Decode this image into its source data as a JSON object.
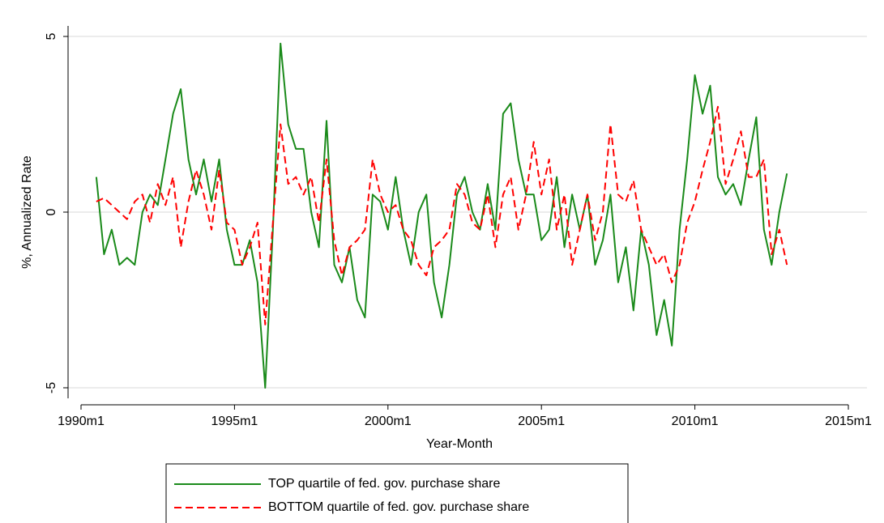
{
  "chart_data": {
    "type": "line",
    "x_label": "Year-Month",
    "y_label": "%, Annualized Rate",
    "x": [
      366,
      369,
      372,
      375,
      378,
      381,
      384,
      387,
      390,
      393,
      396,
      399,
      402,
      405,
      408,
      411,
      414,
      417,
      420,
      423,
      426,
      429,
      432,
      435,
      438,
      441,
      444,
      447,
      450,
      453,
      456,
      459,
      462,
      465,
      468,
      471,
      474,
      477,
      480,
      483,
      486,
      489,
      492,
      495,
      498,
      501,
      504,
      507,
      510,
      513,
      516,
      519,
      522,
      525,
      528,
      531,
      534,
      537,
      540,
      543,
      546,
      549,
      552,
      555,
      558,
      561,
      564,
      567,
      570,
      573,
      576,
      579,
      582,
      585,
      588,
      591,
      594,
      597,
      600,
      603,
      606,
      609,
      612,
      615,
      618,
      621,
      624,
      627,
      630,
      633,
      636
    ],
    "series": [
      {
        "name": "TOP quartile of fed. gov. purchase share",
        "color": "#1a8a1a",
        "dash": "solid",
        "values": [
          1.0,
          -1.2,
          -0.5,
          -1.5,
          -1.3,
          -1.5,
          0,
          0.5,
          0.2,
          1.5,
          2.8,
          3.5,
          1.5,
          0.5,
          1.5,
          0.3,
          1.5,
          -0.5,
          -1.5,
          -1.5,
          -0.8,
          -2,
          -5.0,
          -0.5,
          4.8,
          2.5,
          1.8,
          1.8,
          0,
          -1,
          2.6,
          -1.5,
          -2.0,
          -1.0,
          -2.5,
          -3.0,
          0.5,
          0.3,
          -0.5,
          1.0,
          -0.5,
          -1.5,
          0,
          0.5,
          -2.0,
          -3.0,
          -1.5,
          0.5,
          1.0,
          0,
          -0.5,
          0.8,
          -0.5,
          2.8,
          3.1,
          1.5,
          0.5,
          0.5,
          -0.8,
          -0.5,
          1.0,
          -1.0,
          0.5,
          -0.5,
          0.5,
          -1.5,
          -0.8,
          0.5,
          -2.0,
          -1.0,
          -2.8,
          -0.5,
          -1.5,
          -3.5,
          -2.5,
          -3.8,
          -0.5,
          1.5,
          3.9,
          2.8,
          3.6,
          1.0,
          0.5,
          0.8,
          0.2,
          1.5,
          2.7,
          -0.5,
          -1.5,
          0,
          1.1
        ]
      },
      {
        "name": "BOTTOM quartile of fed. gov. purchase share",
        "color": "#ff0000",
        "dash": "dashed",
        "values": [
          0.3,
          0.4,
          0.2,
          0,
          -0.2,
          0.3,
          0.5,
          -0.3,
          0.8,
          0.2,
          1.0,
          -1.0,
          0.3,
          1.2,
          0.5,
          -0.5,
          1.2,
          -0.3,
          -0.5,
          -1.5,
          -1.0,
          -0.3,
          -3.2,
          -0.3,
          2.5,
          0.8,
          1.0,
          0.5,
          1.0,
          -0.3,
          1.5,
          -0.8,
          -1.8,
          -1.0,
          -0.8,
          -0.5,
          1.5,
          0.5,
          0,
          0.2,
          -0.5,
          -0.8,
          -1.5,
          -1.8,
          -1.0,
          -0.8,
          -0.5,
          0.8,
          0.5,
          -0.3,
          -0.5,
          0.5,
          -1.0,
          0.5,
          1.0,
          -0.5,
          0.5,
          2.0,
          0.5,
          1.5,
          -0.5,
          0.5,
          -1.5,
          -0.5,
          0.5,
          -0.8,
          0,
          2.5,
          0.5,
          0.3,
          0.9,
          -0.5,
          -1.0,
          -1.5,
          -1.2,
          -2.0,
          -1.5,
          -0.3,
          0.3,
          1.2,
          2.0,
          3.0,
          0.8,
          1.5,
          2.3,
          1.0,
          1.0,
          1.5,
          -1.2,
          -0.5,
          -1.5
        ]
      }
    ],
    "xlim": [
      360,
      660
    ],
    "xticks": [
      {
        "value": 360,
        "label": "1990m1"
      },
      {
        "value": 420,
        "label": "1995m1"
      },
      {
        "value": 480,
        "label": "2000m1"
      },
      {
        "value": 540,
        "label": "2005m1"
      },
      {
        "value": 600,
        "label": "2010m1"
      },
      {
        "value": 660,
        "label": "2015m1"
      }
    ],
    "ylim": [
      -5.3,
      5.3
    ],
    "yticks": [
      5,
      0,
      -5
    ],
    "grid": true,
    "legend": "bottom"
  }
}
